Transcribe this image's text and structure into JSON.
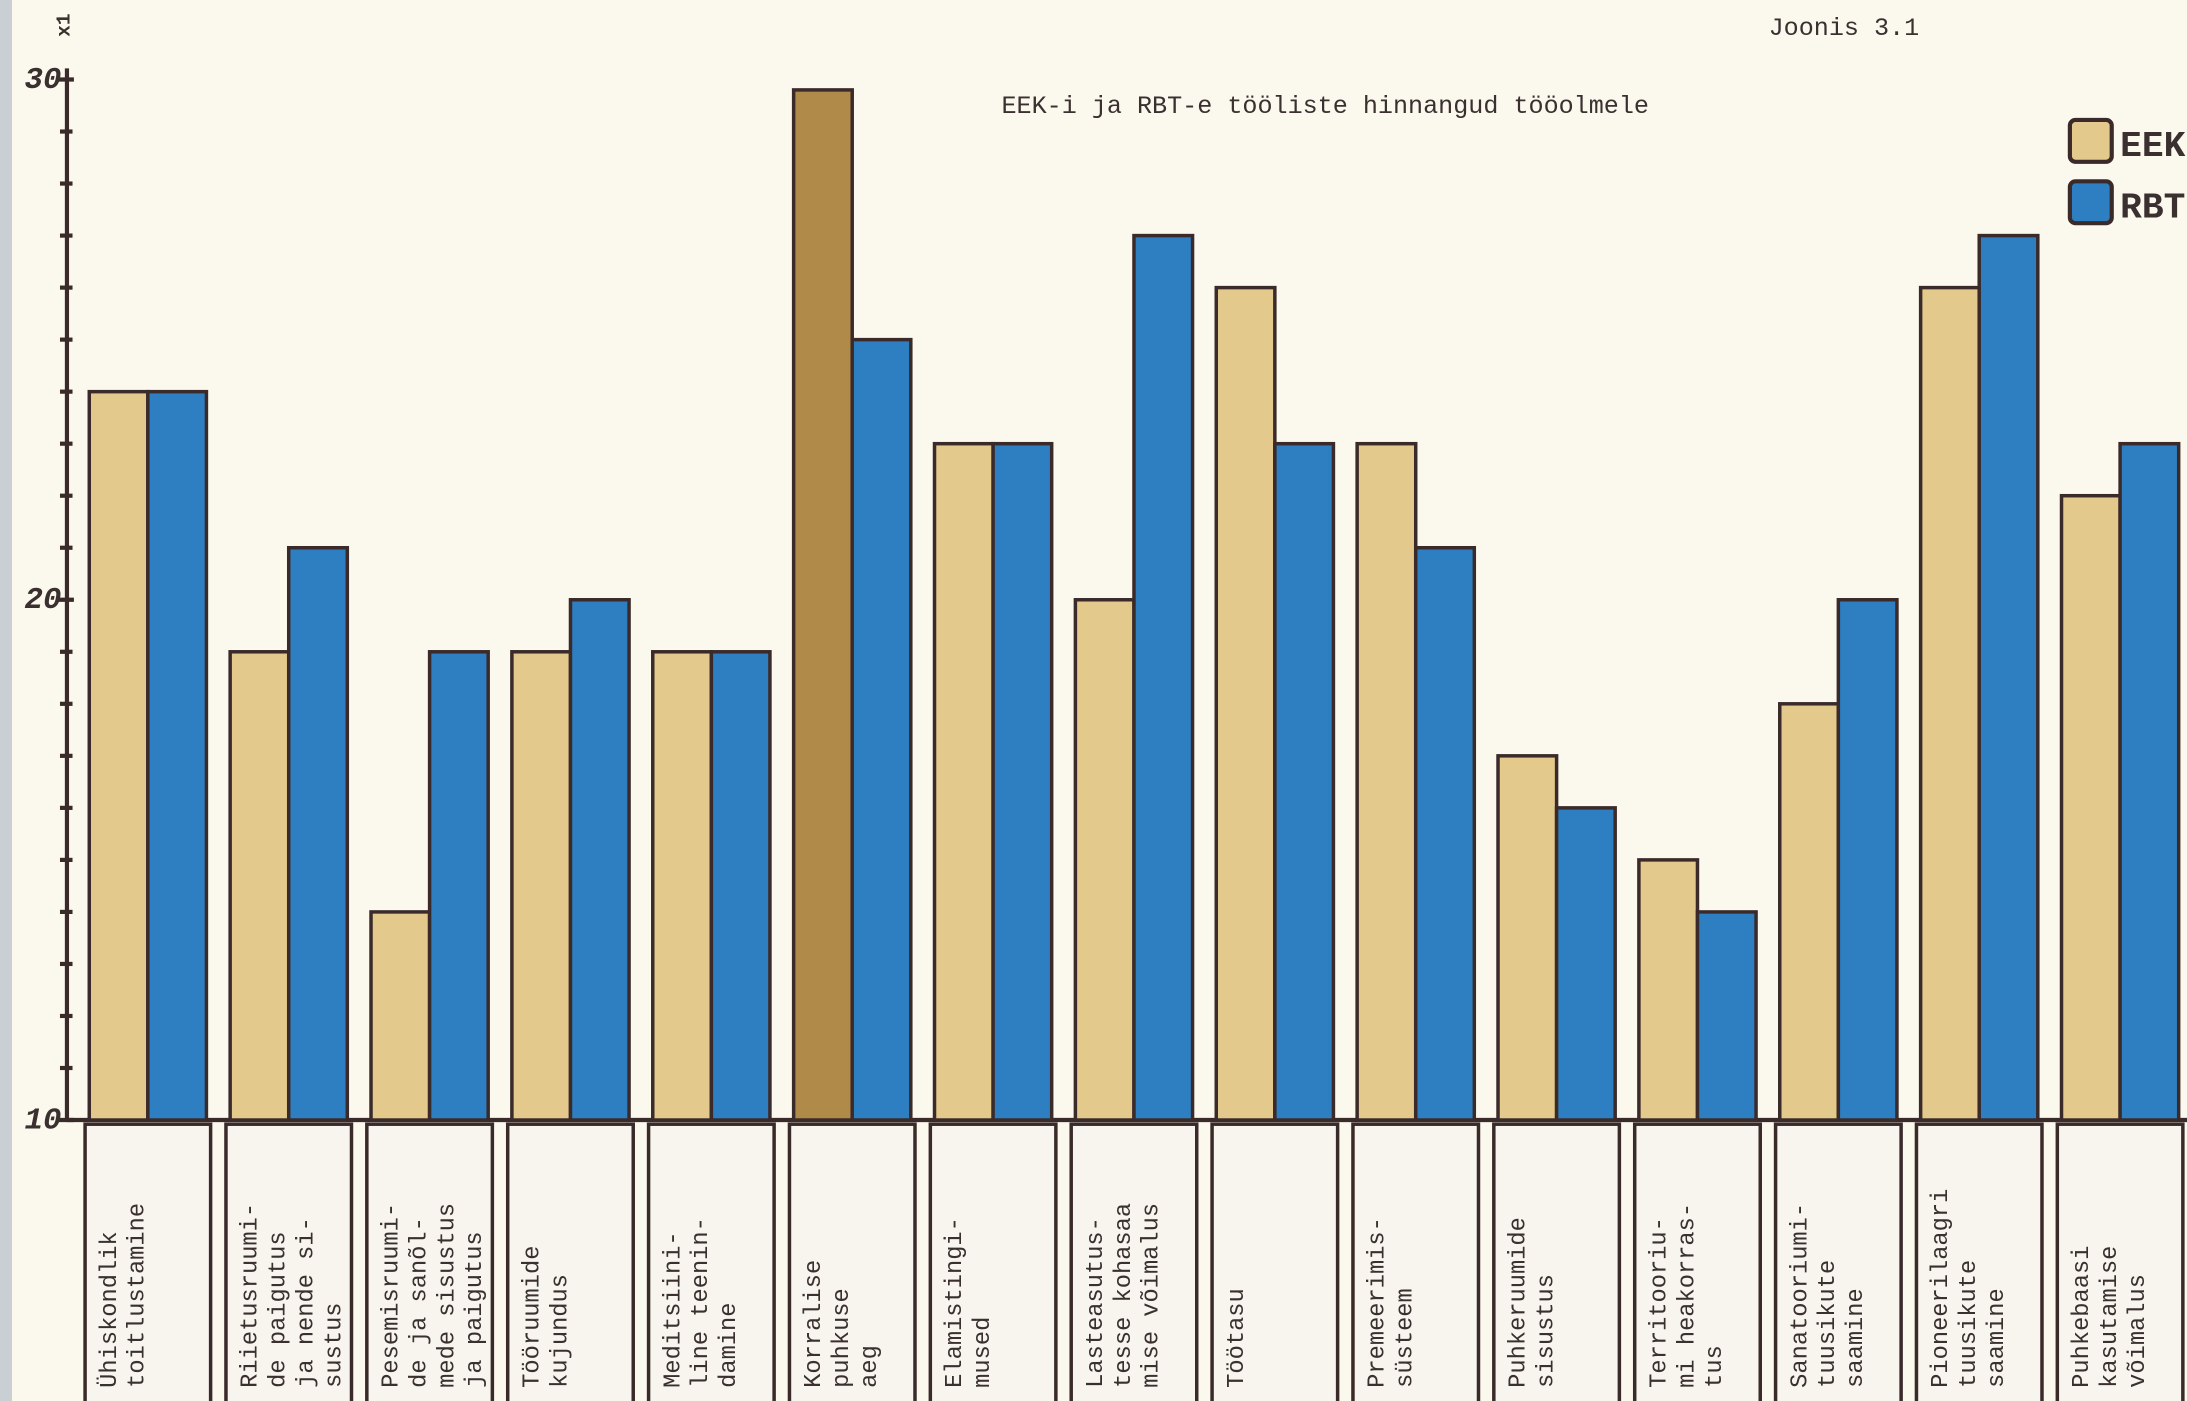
{
  "chart_data": {
    "type": "bar",
    "corner_note": "Joonis 3.1",
    "title": "EEK-i ja RBT-e tööliste hinnangud tööolmele",
    "y_label": "x1",
    "categories": [
      [
        "Ühiskondlik",
        "toitlustamine"
      ],
      [
        "Riietusruumi-",
        "de paigutus",
        "ja nende si-",
        "sustus"
      ],
      [
        "Pesemisruumi-",
        "de ja sanõl-",
        "mede sisustus",
        "ja paigutus"
      ],
      [
        "Tööruumide",
        "kujundus"
      ],
      [
        "Meditsiini-",
        "line teenin-",
        "damine"
      ],
      [
        "Korralise",
        "puhkuse",
        "aeg"
      ],
      [
        "Elamistingi-",
        "mused"
      ],
      [
        "Lasteasutus-",
        "tesse kohasaa",
        "mise võimalus"
      ],
      [
        "Töötasu"
      ],
      [
        "Premeerimis-",
        "süsteem"
      ],
      [
        "Puhkeruumide",
        "sisustus"
      ],
      [
        "Territooriu-",
        "mi heakorras-",
        "tus"
      ],
      [
        "Sanatooriumi-",
        "tuusikute",
        "saamine"
      ],
      [
        "Pioneerilaagri",
        "tuusikute",
        "saamine"
      ],
      [
        "Puhkebaasi",
        "kasutamise",
        "võimalus"
      ]
    ],
    "series": [
      {
        "name": "EEK",
        "color": "#e4c98c",
        "colors": [
          "#e4c98c",
          "#e4c98c",
          "#e4c98c",
          "#e4c98c",
          "#e4c98c",
          "#b08a48",
          "#e4c98c",
          "#e4c98c",
          "#e4c98c",
          "#e4c98c",
          "#e4c98c",
          "#e4c98c",
          "#e4c98c",
          "#e4c98c",
          "#e4c98c"
        ],
        "values": [
          24,
          19,
          14,
          19,
          19,
          29.8,
          23,
          20,
          26,
          23,
          17,
          15,
          18,
          26,
          22
        ]
      },
      {
        "name": "RBT",
        "color": "#2e7fc2",
        "values": [
          24,
          21,
          19,
          20,
          19,
          25,
          23,
          27,
          23,
          21,
          16,
          14,
          20,
          27,
          23
        ]
      }
    ],
    "ylim": [
      10,
      30
    ],
    "yticks": [
      10,
      20,
      30
    ],
    "minor_yticks": [
      11,
      12,
      13,
      14,
      15,
      16,
      17,
      18,
      19,
      21,
      22,
      23,
      24,
      25,
      26,
      27,
      28,
      29
    ],
    "legend": "top-right"
  }
}
